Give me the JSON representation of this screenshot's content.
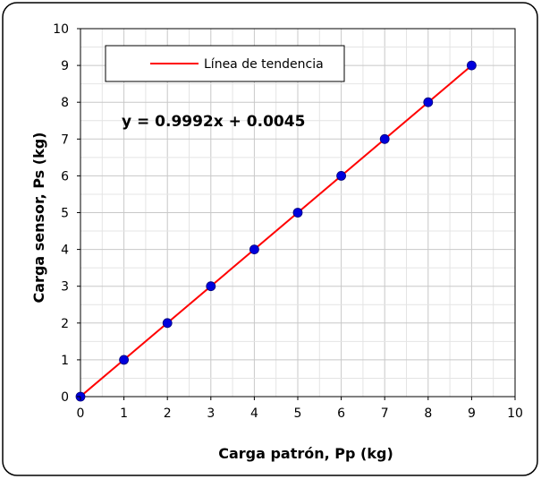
{
  "chart_data": {
    "type": "scatter",
    "xlabel": "Carga patrón, Pp (kg)",
    "ylabel": "Carga sensor, Ps (kg)",
    "xlim": [
      0,
      10
    ],
    "ylim": [
      0,
      10
    ],
    "x_ticks": [
      "0",
      "1",
      "2",
      "3",
      "4",
      "5",
      "6",
      "7",
      "8",
      "9",
      "10"
    ],
    "y_ticks": [
      "0",
      "1",
      "2",
      "3",
      "4",
      "5",
      "6",
      "7",
      "8",
      "9",
      "10"
    ],
    "minor_grid_step": 0.5,
    "grid": true,
    "legend_position": "top-left",
    "equation": "y = 0.9992x + 0.0045",
    "series": [
      {
        "kind": "points",
        "color": "#0000dd",
        "x": [
          0,
          1,
          2,
          3,
          4,
          5,
          6,
          7,
          8,
          9
        ],
        "y": [
          0,
          1,
          2,
          3,
          4,
          5,
          6,
          7,
          8,
          9
        ]
      },
      {
        "kind": "trendline",
        "name": "Línea de tendencia",
        "color": "#ff0000",
        "slope": 0.9992,
        "intercept": 0.0045,
        "x_range": [
          0,
          9
        ]
      }
    ]
  }
}
